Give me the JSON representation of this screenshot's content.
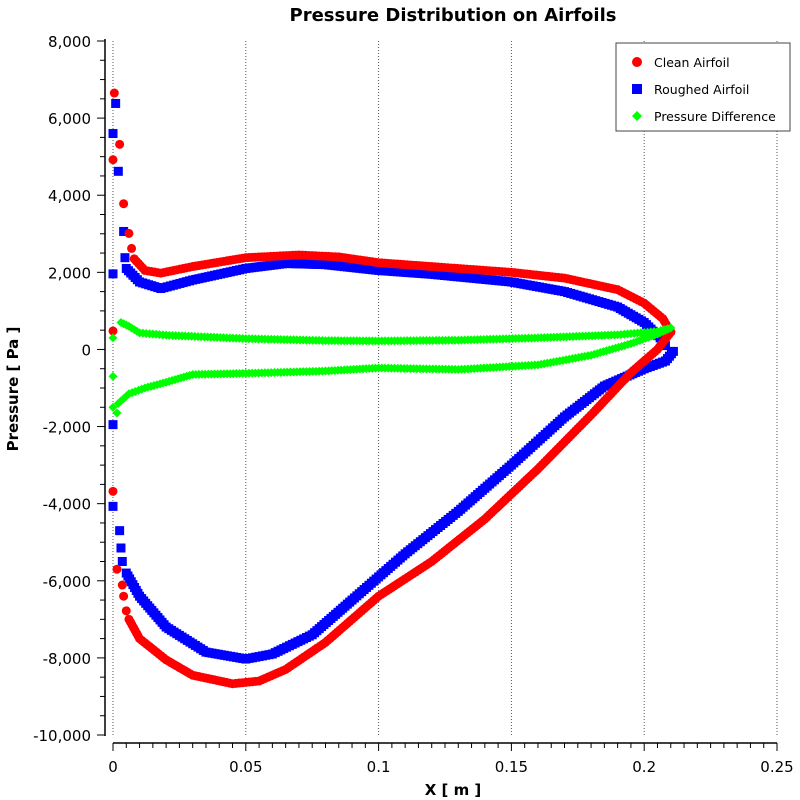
{
  "chart_data": {
    "type": "scatter",
    "title": "Pressure Distribution on Airfoils",
    "xlabel": "X [ m ]",
    "ylabel": "Pressure [ Pa ]",
    "xlim": [
      0,
      0.25
    ],
    "ylim": [
      -10000,
      8000
    ],
    "x_ticks": [
      0,
      0.05,
      0.1,
      0.15,
      0.2,
      0.25
    ],
    "x_tick_labels": [
      "0",
      "0.05",
      "0.1",
      "0.15",
      "0.2",
      "0.25"
    ],
    "y_ticks": [
      8000,
      6000,
      4000,
      2000,
      0,
      -2000,
      -4000,
      -6000,
      -8000,
      -10000
    ],
    "y_tick_labels": [
      "8,000",
      "6,000",
      "4,000",
      "2,000",
      "0",
      "-2,000",
      "-4,000",
      "-6,000",
      "-8,000",
      "-10,000"
    ],
    "grid": "vertical dotted",
    "legend_position": "top-right",
    "series": [
      {
        "name": "Clean Airfoil",
        "color": "#ff0000",
        "marker": "circle",
        "leading_points": [
          [
            0.0005,
            6650
          ],
          [
            0.0025,
            5320
          ],
          [
            0.0,
            4920
          ],
          [
            0.004,
            3780
          ],
          [
            0.006,
            3010
          ],
          [
            0.007,
            2620
          ],
          [
            0.0,
            480
          ],
          [
            0.0,
            -3680
          ],
          [
            0.0015,
            -5700
          ],
          [
            0.0035,
            -6110
          ],
          [
            0.004,
            -6400
          ],
          [
            0.005,
            -6780
          ]
        ],
        "upper": [
          [
            0.008,
            2350
          ],
          [
            0.012,
            2050
          ],
          [
            0.018,
            1980
          ],
          [
            0.03,
            2150
          ],
          [
            0.05,
            2380
          ],
          [
            0.07,
            2450
          ],
          [
            0.085,
            2400
          ],
          [
            0.1,
            2250
          ],
          [
            0.12,
            2150
          ],
          [
            0.15,
            2000
          ],
          [
            0.17,
            1850
          ],
          [
            0.19,
            1550
          ],
          [
            0.2,
            1200
          ],
          [
            0.207,
            800
          ],
          [
            0.21,
            450
          ]
        ],
        "lower": [
          [
            0.006,
            -7000
          ],
          [
            0.01,
            -7500
          ],
          [
            0.02,
            -8050
          ],
          [
            0.03,
            -8450
          ],
          [
            0.045,
            -8670
          ],
          [
            0.055,
            -8600
          ],
          [
            0.065,
            -8300
          ],
          [
            0.08,
            -7600
          ],
          [
            0.1,
            -6400
          ],
          [
            0.12,
            -5500
          ],
          [
            0.14,
            -4400
          ],
          [
            0.16,
            -3100
          ],
          [
            0.18,
            -1700
          ],
          [
            0.195,
            -600
          ],
          [
            0.205,
            0
          ],
          [
            0.21,
            450
          ]
        ]
      },
      {
        "name": "Roughed Airfoil",
        "color": "#0000ff",
        "marker": "square",
        "leading_points": [
          [
            0.001,
            6380
          ],
          [
            0.0,
            5600
          ],
          [
            0.002,
            4620
          ],
          [
            0.004,
            3060
          ],
          [
            0.0045,
            2380
          ],
          [
            0.0,
            1960
          ],
          [
            0.0,
            -1950
          ],
          [
            0.0,
            -4070
          ],
          [
            0.0025,
            -4700
          ],
          [
            0.003,
            -5150
          ],
          [
            0.0035,
            -5500
          ]
        ],
        "upper": [
          [
            0.005,
            2100
          ],
          [
            0.01,
            1750
          ],
          [
            0.018,
            1580
          ],
          [
            0.03,
            1800
          ],
          [
            0.05,
            2100
          ],
          [
            0.065,
            2230
          ],
          [
            0.08,
            2200
          ],
          [
            0.1,
            2050
          ],
          [
            0.12,
            1950
          ],
          [
            0.15,
            1750
          ],
          [
            0.17,
            1500
          ],
          [
            0.19,
            1100
          ],
          [
            0.2,
            700
          ],
          [
            0.206,
            300
          ],
          [
            0.208,
            100
          ]
        ],
        "lower": [
          [
            0.005,
            -5800
          ],
          [
            0.01,
            -6400
          ],
          [
            0.02,
            -7200
          ],
          [
            0.035,
            -7850
          ],
          [
            0.05,
            -8030
          ],
          [
            0.06,
            -7900
          ],
          [
            0.075,
            -7400
          ],
          [
            0.09,
            -6500
          ],
          [
            0.11,
            -5300
          ],
          [
            0.13,
            -4200
          ],
          [
            0.15,
            -3000
          ],
          [
            0.17,
            -1750
          ],
          [
            0.185,
            -950
          ],
          [
            0.2,
            -500
          ],
          [
            0.208,
            -300
          ],
          [
            0.211,
            -50
          ]
        ]
      },
      {
        "name": "Pressure Difference",
        "color": "#00ff00",
        "marker": "diamond",
        "leading_points": [
          [
            0.0,
            300
          ],
          [
            0.0,
            -700
          ],
          [
            0.0,
            -1500
          ],
          [
            0.0015,
            -1650
          ]
        ],
        "upper": [
          [
            0.003,
            700
          ],
          [
            0.006,
            600
          ],
          [
            0.01,
            430
          ],
          [
            0.02,
            370
          ],
          [
            0.05,
            280
          ],
          [
            0.08,
            230
          ],
          [
            0.1,
            220
          ],
          [
            0.13,
            240
          ],
          [
            0.16,
            300
          ],
          [
            0.19,
            380
          ],
          [
            0.205,
            470
          ],
          [
            0.21,
            560
          ]
        ],
        "lower": [
          [
            0.002,
            -1400
          ],
          [
            0.006,
            -1150
          ],
          [
            0.012,
            -1000
          ],
          [
            0.02,
            -850
          ],
          [
            0.03,
            -650
          ],
          [
            0.05,
            -620
          ],
          [
            0.08,
            -560
          ],
          [
            0.1,
            -480
          ],
          [
            0.13,
            -520
          ],
          [
            0.16,
            -400
          ],
          [
            0.18,
            -150
          ],
          [
            0.195,
            150
          ],
          [
            0.205,
            400
          ],
          [
            0.21,
            560
          ]
        ]
      }
    ]
  }
}
